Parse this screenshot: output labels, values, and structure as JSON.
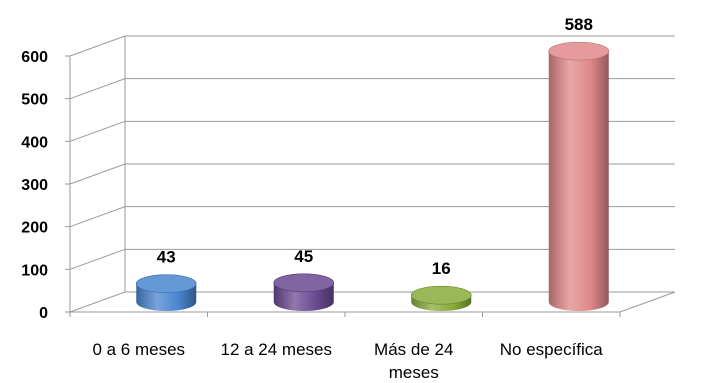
{
  "chart_data": {
    "type": "bar",
    "style": "3d-cylinder",
    "categories": [
      "0 a 6 meses",
      "12 a 24 meses",
      "Más de 24 meses",
      "No específica"
    ],
    "category_label_lines": [
      [
        "0 a 6 meses"
      ],
      [
        "12 a 24 meses"
      ],
      [
        "Más de 24",
        "meses"
      ],
      [
        "No específica"
      ]
    ],
    "values": [
      43,
      45,
      16,
      588
    ],
    "data_labels": [
      "43",
      "45",
      "16",
      "588"
    ],
    "colors": [
      "#4a86d0",
      "#6b4a93",
      "#88ab3a",
      "#e0888a"
    ],
    "ylim": [
      0,
      600
    ],
    "yticks": [
      "0",
      "100",
      "200",
      "300",
      "400",
      "500",
      "600"
    ],
    "grid": true,
    "title": "",
    "xlabel": "",
    "ylabel": ""
  }
}
